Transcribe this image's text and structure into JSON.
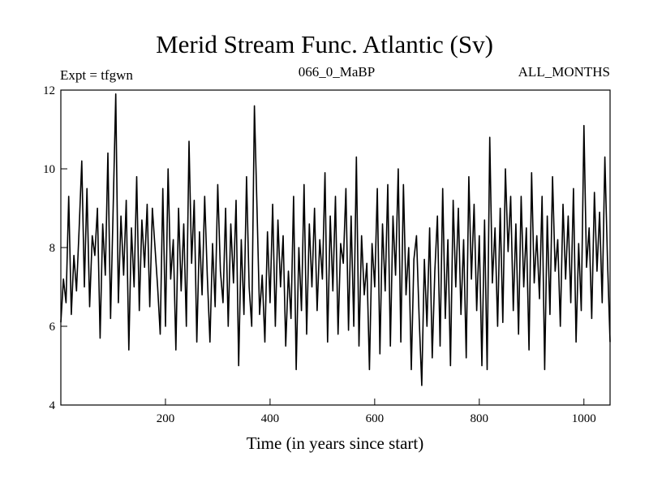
{
  "chart_data": {
    "type": "line",
    "title": "Merid Stream Func. Atlantic (Sv)",
    "subtitle_left": "Expt = tfgwn",
    "subtitle_center": "066_0_MaBP",
    "subtitle_right": "ALL_MONTHS",
    "xlabel": "Time (in years since start)",
    "ylabel": "",
    "xlim": [
      0,
      1050
    ],
    "ylim": [
      4,
      12
    ],
    "xticks": [
      200,
      400,
      600,
      800,
      1000
    ],
    "yticks": [
      4,
      6,
      8,
      10,
      12
    ],
    "grid": false,
    "line_color": "#000000",
    "series": [
      {
        "x": [
          0,
          5,
          10,
          15,
          20,
          25,
          30,
          35,
          40,
          45,
          50,
          55,
          60,
          65,
          70,
          75,
          80,
          85,
          90,
          95,
          100,
          105,
          110,
          115,
          120,
          125,
          130,
          135,
          140,
          145,
          150,
          155,
          160,
          165,
          170,
          175,
          180,
          185,
          190,
          195,
          200,
          205,
          210,
          215,
          220,
          225,
          230,
          235,
          240,
          245,
          250,
          255,
          260,
          265,
          270,
          275,
          280,
          285,
          290,
          295,
          300,
          305,
          310,
          315,
          320,
          325,
          330,
          335,
          340,
          345,
          350,
          355,
          360,
          365,
          370,
          375,
          380,
          385,
          390,
          395,
          400,
          405,
          410,
          415,
          420,
          425,
          430,
          435,
          440,
          445,
          450,
          455,
          460,
          465,
          470,
          475,
          480,
          485,
          490,
          495,
          500,
          505,
          510,
          515,
          520,
          525,
          530,
          535,
          540,
          545,
          550,
          555,
          560,
          565,
          570,
          575,
          580,
          585,
          590,
          595,
          600,
          605,
          610,
          615,
          620,
          625,
          630,
          635,
          640,
          645,
          650,
          655,
          660,
          665,
          670,
          675,
          680,
          685,
          690,
          695,
          700,
          705,
          710,
          715,
          720,
          725,
          730,
          735,
          740,
          745,
          750,
          755,
          760,
          765,
          770,
          775,
          780,
          785,
          790,
          795,
          800,
          805,
          810,
          815,
          820,
          825,
          830,
          835,
          840,
          845,
          850,
          855,
          860,
          865,
          870,
          875,
          880,
          885,
          890,
          895,
          900,
          905,
          910,
          915,
          920,
          925,
          930,
          935,
          940,
          945,
          950,
          955,
          960,
          965,
          970,
          975,
          980,
          985,
          990,
          995,
          1000,
          1005,
          1010,
          1015,
          1020,
          1025,
          1030,
          1035,
          1040,
          1045,
          1050
        ],
        "values": [
          6.1,
          7.2,
          6.6,
          9.3,
          6.3,
          7.8,
          6.9,
          8.5,
          10.2,
          7.0,
          9.5,
          6.5,
          8.3,
          7.8,
          9.0,
          5.7,
          8.6,
          7.3,
          10.4,
          6.2,
          9.0,
          11.9,
          6.6,
          8.8,
          7.3,
          9.2,
          5.4,
          8.5,
          7.0,
          9.8,
          6.4,
          8.7,
          7.5,
          9.1,
          6.5,
          9.0,
          8.0,
          7.0,
          5.8,
          9.5,
          6.0,
          10.0,
          7.2,
          8.2,
          5.4,
          9.0,
          6.9,
          8.6,
          6.0,
          10.7,
          7.6,
          9.2,
          5.6,
          8.4,
          6.8,
          9.3,
          7.3,
          5.6,
          8.1,
          6.5,
          9.6,
          7.4,
          6.6,
          9.0,
          6.0,
          8.6,
          7.1,
          9.2,
          5.0,
          8.2,
          6.3,
          9.8,
          7.0,
          6.0,
          11.6,
          9.0,
          6.3,
          7.3,
          5.6,
          8.4,
          6.6,
          9.1,
          6.0,
          8.7,
          7.0,
          8.3,
          5.5,
          7.4,
          6.2,
          9.3,
          4.9,
          8.0,
          6.4,
          9.6,
          5.8,
          8.6,
          7.0,
          9.0,
          6.4,
          8.2,
          7.2,
          9.9,
          5.6,
          8.8,
          6.9,
          9.3,
          5.8,
          8.1,
          7.6,
          9.5,
          5.9,
          8.8,
          6.0,
          10.3,
          5.5,
          8.3,
          6.8,
          7.6,
          4.9,
          8.1,
          7.0,
          9.5,
          5.3,
          8.6,
          6.9,
          9.6,
          5.5,
          8.8,
          7.3,
          10.0,
          5.6,
          9.6,
          6.8,
          8.0,
          4.9,
          7.7,
          8.3,
          6.2,
          4.5,
          7.7,
          6.0,
          8.5,
          5.2,
          7.4,
          8.8,
          5.5,
          9.5,
          6.2,
          8.2,
          5.0,
          9.2,
          7.0,
          9.0,
          6.3,
          8.2,
          5.2,
          9.8,
          7.2,
          9.1,
          6.4,
          8.3,
          5.0,
          8.7,
          4.9,
          10.8,
          7.1,
          8.5,
          6.0,
          9.0,
          6.1,
          10.0,
          7.9,
          9.3,
          6.4,
          8.6,
          5.8,
          9.3,
          7.0,
          8.5,
          5.4,
          9.9,
          7.1,
          8.3,
          6.7,
          9.3,
          4.9,
          8.8,
          6.3,
          9.8,
          7.4,
          8.2,
          6.0,
          9.1,
          7.2,
          8.8,
          6.6,
          9.5,
          5.6,
          8.1,
          6.4,
          11.1,
          7.5,
          8.5,
          6.2,
          9.4,
          7.4,
          8.9,
          6.6,
          10.3,
          7.7,
          5.6
        ]
      }
    ]
  }
}
